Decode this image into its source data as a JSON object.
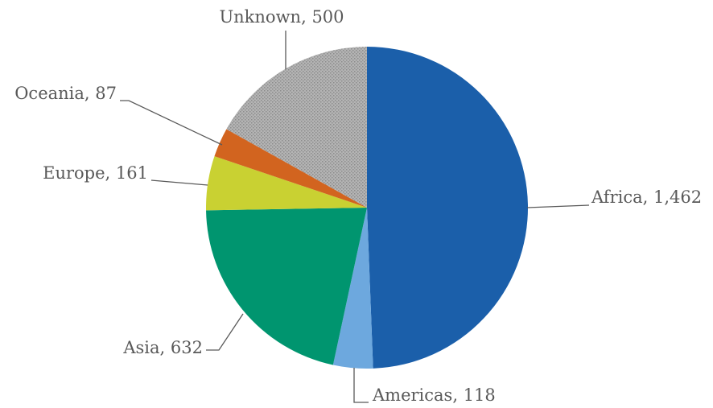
{
  "chart_data": {
    "type": "pie",
    "categories": [
      "Africa",
      "Americas",
      "Asia",
      "Europe",
      "Oceania",
      "Unknown"
    ],
    "values": [
      1462,
      118,
      632,
      161,
      87,
      500
    ],
    "value_labels": [
      "1,462",
      "118",
      "632",
      "161",
      "87",
      "500"
    ],
    "colors": [
      "#1b5faa",
      "#6da8de",
      "#00956f",
      "#c9d132",
      "#d2641f",
      "#aaaaaa"
    ]
  }
}
